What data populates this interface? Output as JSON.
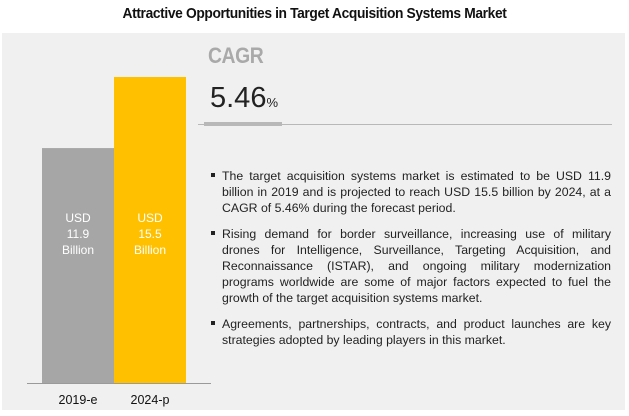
{
  "title": "Attractive Opportunities in Target Acquisition Systems Market",
  "cagr": {
    "label": "CAGR",
    "value": "5.46",
    "unit": "%"
  },
  "bullets": [
    "The target acquisition systems market is estimated to be USD 11.9 billion in 2019 and is projected to reach USD 15.5 billion by 2024, at a CAGR of 5.46% during the forecast period.",
    "Rising demand for border surveillance, increasing use of military drones for Intelligence, Surveillance, Targeting Acquisition, and Reconnaissance (ISTAR), and ongoing military modernization programs worldwide are some of major factors expected to fuel the growth of the target acquisition systems market.",
    "Agreements, partnerships, contracts, and product launches are key strategies adopted by leading players in this market."
  ],
  "colors": {
    "bar_2019": "#a6a6a6",
    "bar_2024": "#ffc000",
    "panel": "#f0f0f0"
  },
  "chart_data": {
    "type": "bar",
    "title": "Attractive Opportunities in Target Acquisition Systems Market",
    "categories": [
      "2019-e",
      "2024-p"
    ],
    "values": [
      11.9,
      15.5
    ],
    "unit": "USD Billion",
    "data_labels": [
      [
        "USD",
        "11.9",
        "Billion"
      ],
      [
        "USD",
        "15.5",
        "Billion"
      ]
    ],
    "colors": [
      "#a6a6a6",
      "#ffc000"
    ],
    "xlabel": "",
    "ylabel": "",
    "ylim": [
      0,
      15.5
    ],
    "grid": false,
    "legend": "none"
  }
}
